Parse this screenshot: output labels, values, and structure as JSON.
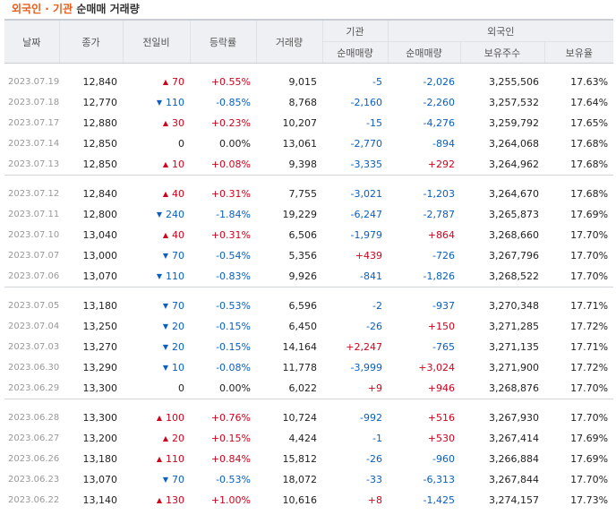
{
  "title": {
    "part1": "외국인 · 기관",
    "part2": "순매매 거래량"
  },
  "headers": {
    "date": "날짜",
    "close": "종가",
    "change": "전일비",
    "rate": "등락률",
    "volume": "거래량",
    "inst_group": "기관",
    "foreign_group": "외국인",
    "inst_net": "순매매량",
    "foreign_net": "순매매량",
    "holdings": "보유주수",
    "ratio": "보유율"
  },
  "colors": {
    "up": "#d0021b",
    "down": "#0a5fc0"
  },
  "icons": {
    "up": "triangle-up-icon",
    "down": "triangle-down-icon"
  },
  "rows": [
    {
      "date": "2023.07.19",
      "close": "12,840",
      "dir": "up",
      "change": "70",
      "rate": "+0.55%",
      "volume": "9,015",
      "inst": "-5",
      "foreign": "-2,026",
      "holdings": "3,255,506",
      "ratio": "17.63%"
    },
    {
      "date": "2023.07.18",
      "close": "12,770",
      "dir": "down",
      "change": "110",
      "rate": "-0.85%",
      "volume": "8,768",
      "inst": "-2,160",
      "foreign": "-2,260",
      "holdings": "3,257,532",
      "ratio": "17.64%"
    },
    {
      "date": "2023.07.17",
      "close": "12,880",
      "dir": "up",
      "change": "30",
      "rate": "+0.23%",
      "volume": "10,207",
      "inst": "-15",
      "foreign": "-4,276",
      "holdings": "3,259,792",
      "ratio": "17.65%"
    },
    {
      "date": "2023.07.14",
      "close": "12,850",
      "dir": "flat",
      "change": "0",
      "rate": "0.00%",
      "volume": "13,061",
      "inst": "-2,770",
      "foreign": "-894",
      "holdings": "3,264,068",
      "ratio": "17.68%"
    },
    {
      "date": "2023.07.13",
      "close": "12,850",
      "dir": "up",
      "change": "10",
      "rate": "+0.08%",
      "volume": "9,398",
      "inst": "-3,335",
      "foreign": "+292",
      "holdings": "3,264,962",
      "ratio": "17.68%"
    },
    {
      "date": "2023.07.12",
      "close": "12,840",
      "dir": "up",
      "change": "40",
      "rate": "+0.31%",
      "volume": "7,755",
      "inst": "-3,021",
      "foreign": "-1,203",
      "holdings": "3,264,670",
      "ratio": "17.68%"
    },
    {
      "date": "2023.07.11",
      "close": "12,800",
      "dir": "down",
      "change": "240",
      "rate": "-1.84%",
      "volume": "19,229",
      "inst": "-6,247",
      "foreign": "-2,787",
      "holdings": "3,265,873",
      "ratio": "17.69%"
    },
    {
      "date": "2023.07.10",
      "close": "13,040",
      "dir": "up",
      "change": "40",
      "rate": "+0.31%",
      "volume": "6,506",
      "inst": "-1,979",
      "foreign": "+864",
      "holdings": "3,268,660",
      "ratio": "17.70%"
    },
    {
      "date": "2023.07.07",
      "close": "13,000",
      "dir": "down",
      "change": "70",
      "rate": "-0.54%",
      "volume": "5,356",
      "inst": "+439",
      "foreign": "-726",
      "holdings": "3,267,796",
      "ratio": "17.70%"
    },
    {
      "date": "2023.07.06",
      "close": "13,070",
      "dir": "down",
      "change": "110",
      "rate": "-0.83%",
      "volume": "9,926",
      "inst": "-841",
      "foreign": "-1,826",
      "holdings": "3,268,522",
      "ratio": "17.70%"
    },
    {
      "date": "2023.07.05",
      "close": "13,180",
      "dir": "down",
      "change": "70",
      "rate": "-0.53%",
      "volume": "6,596",
      "inst": "-2",
      "foreign": "-937",
      "holdings": "3,270,348",
      "ratio": "17.71%"
    },
    {
      "date": "2023.07.04",
      "close": "13,250",
      "dir": "down",
      "change": "20",
      "rate": "-0.15%",
      "volume": "6,450",
      "inst": "-26",
      "foreign": "+150",
      "holdings": "3,271,285",
      "ratio": "17.72%"
    },
    {
      "date": "2023.07.03",
      "close": "13,270",
      "dir": "down",
      "change": "20",
      "rate": "-0.15%",
      "volume": "14,164",
      "inst": "+2,247",
      "foreign": "-765",
      "holdings": "3,271,135",
      "ratio": "17.71%"
    },
    {
      "date": "2023.06.30",
      "close": "13,290",
      "dir": "down",
      "change": "10",
      "rate": "-0.08%",
      "volume": "11,778",
      "inst": "-3,999",
      "foreign": "+3,024",
      "holdings": "3,271,900",
      "ratio": "17.72%"
    },
    {
      "date": "2023.06.29",
      "close": "13,300",
      "dir": "flat",
      "change": "0",
      "rate": "0.00%",
      "volume": "6,022",
      "inst": "+9",
      "foreign": "+946",
      "holdings": "3,268,876",
      "ratio": "17.70%"
    },
    {
      "date": "2023.06.28",
      "close": "13,300",
      "dir": "up",
      "change": "100",
      "rate": "+0.76%",
      "volume": "10,724",
      "inst": "-992",
      "foreign": "+516",
      "holdings": "3,267,930",
      "ratio": "17.70%"
    },
    {
      "date": "2023.06.27",
      "close": "13,200",
      "dir": "up",
      "change": "20",
      "rate": "+0.15%",
      "volume": "4,424",
      "inst": "-1",
      "foreign": "+530",
      "holdings": "3,267,414",
      "ratio": "17.69%"
    },
    {
      "date": "2023.06.26",
      "close": "13,180",
      "dir": "up",
      "change": "110",
      "rate": "+0.84%",
      "volume": "15,812",
      "inst": "-26",
      "foreign": "-960",
      "holdings": "3,266,884",
      "ratio": "17.69%"
    },
    {
      "date": "2023.06.23",
      "close": "13,070",
      "dir": "down",
      "change": "70",
      "rate": "-0.53%",
      "volume": "18,072",
      "inst": "-33",
      "foreign": "-6,313",
      "holdings": "3,267,844",
      "ratio": "17.70%"
    },
    {
      "date": "2023.06.22",
      "close": "13,140",
      "dir": "up",
      "change": "130",
      "rate": "+1.00%",
      "volume": "10,616",
      "inst": "+8",
      "foreign": "-1,425",
      "holdings": "3,274,157",
      "ratio": "17.73%"
    }
  ]
}
